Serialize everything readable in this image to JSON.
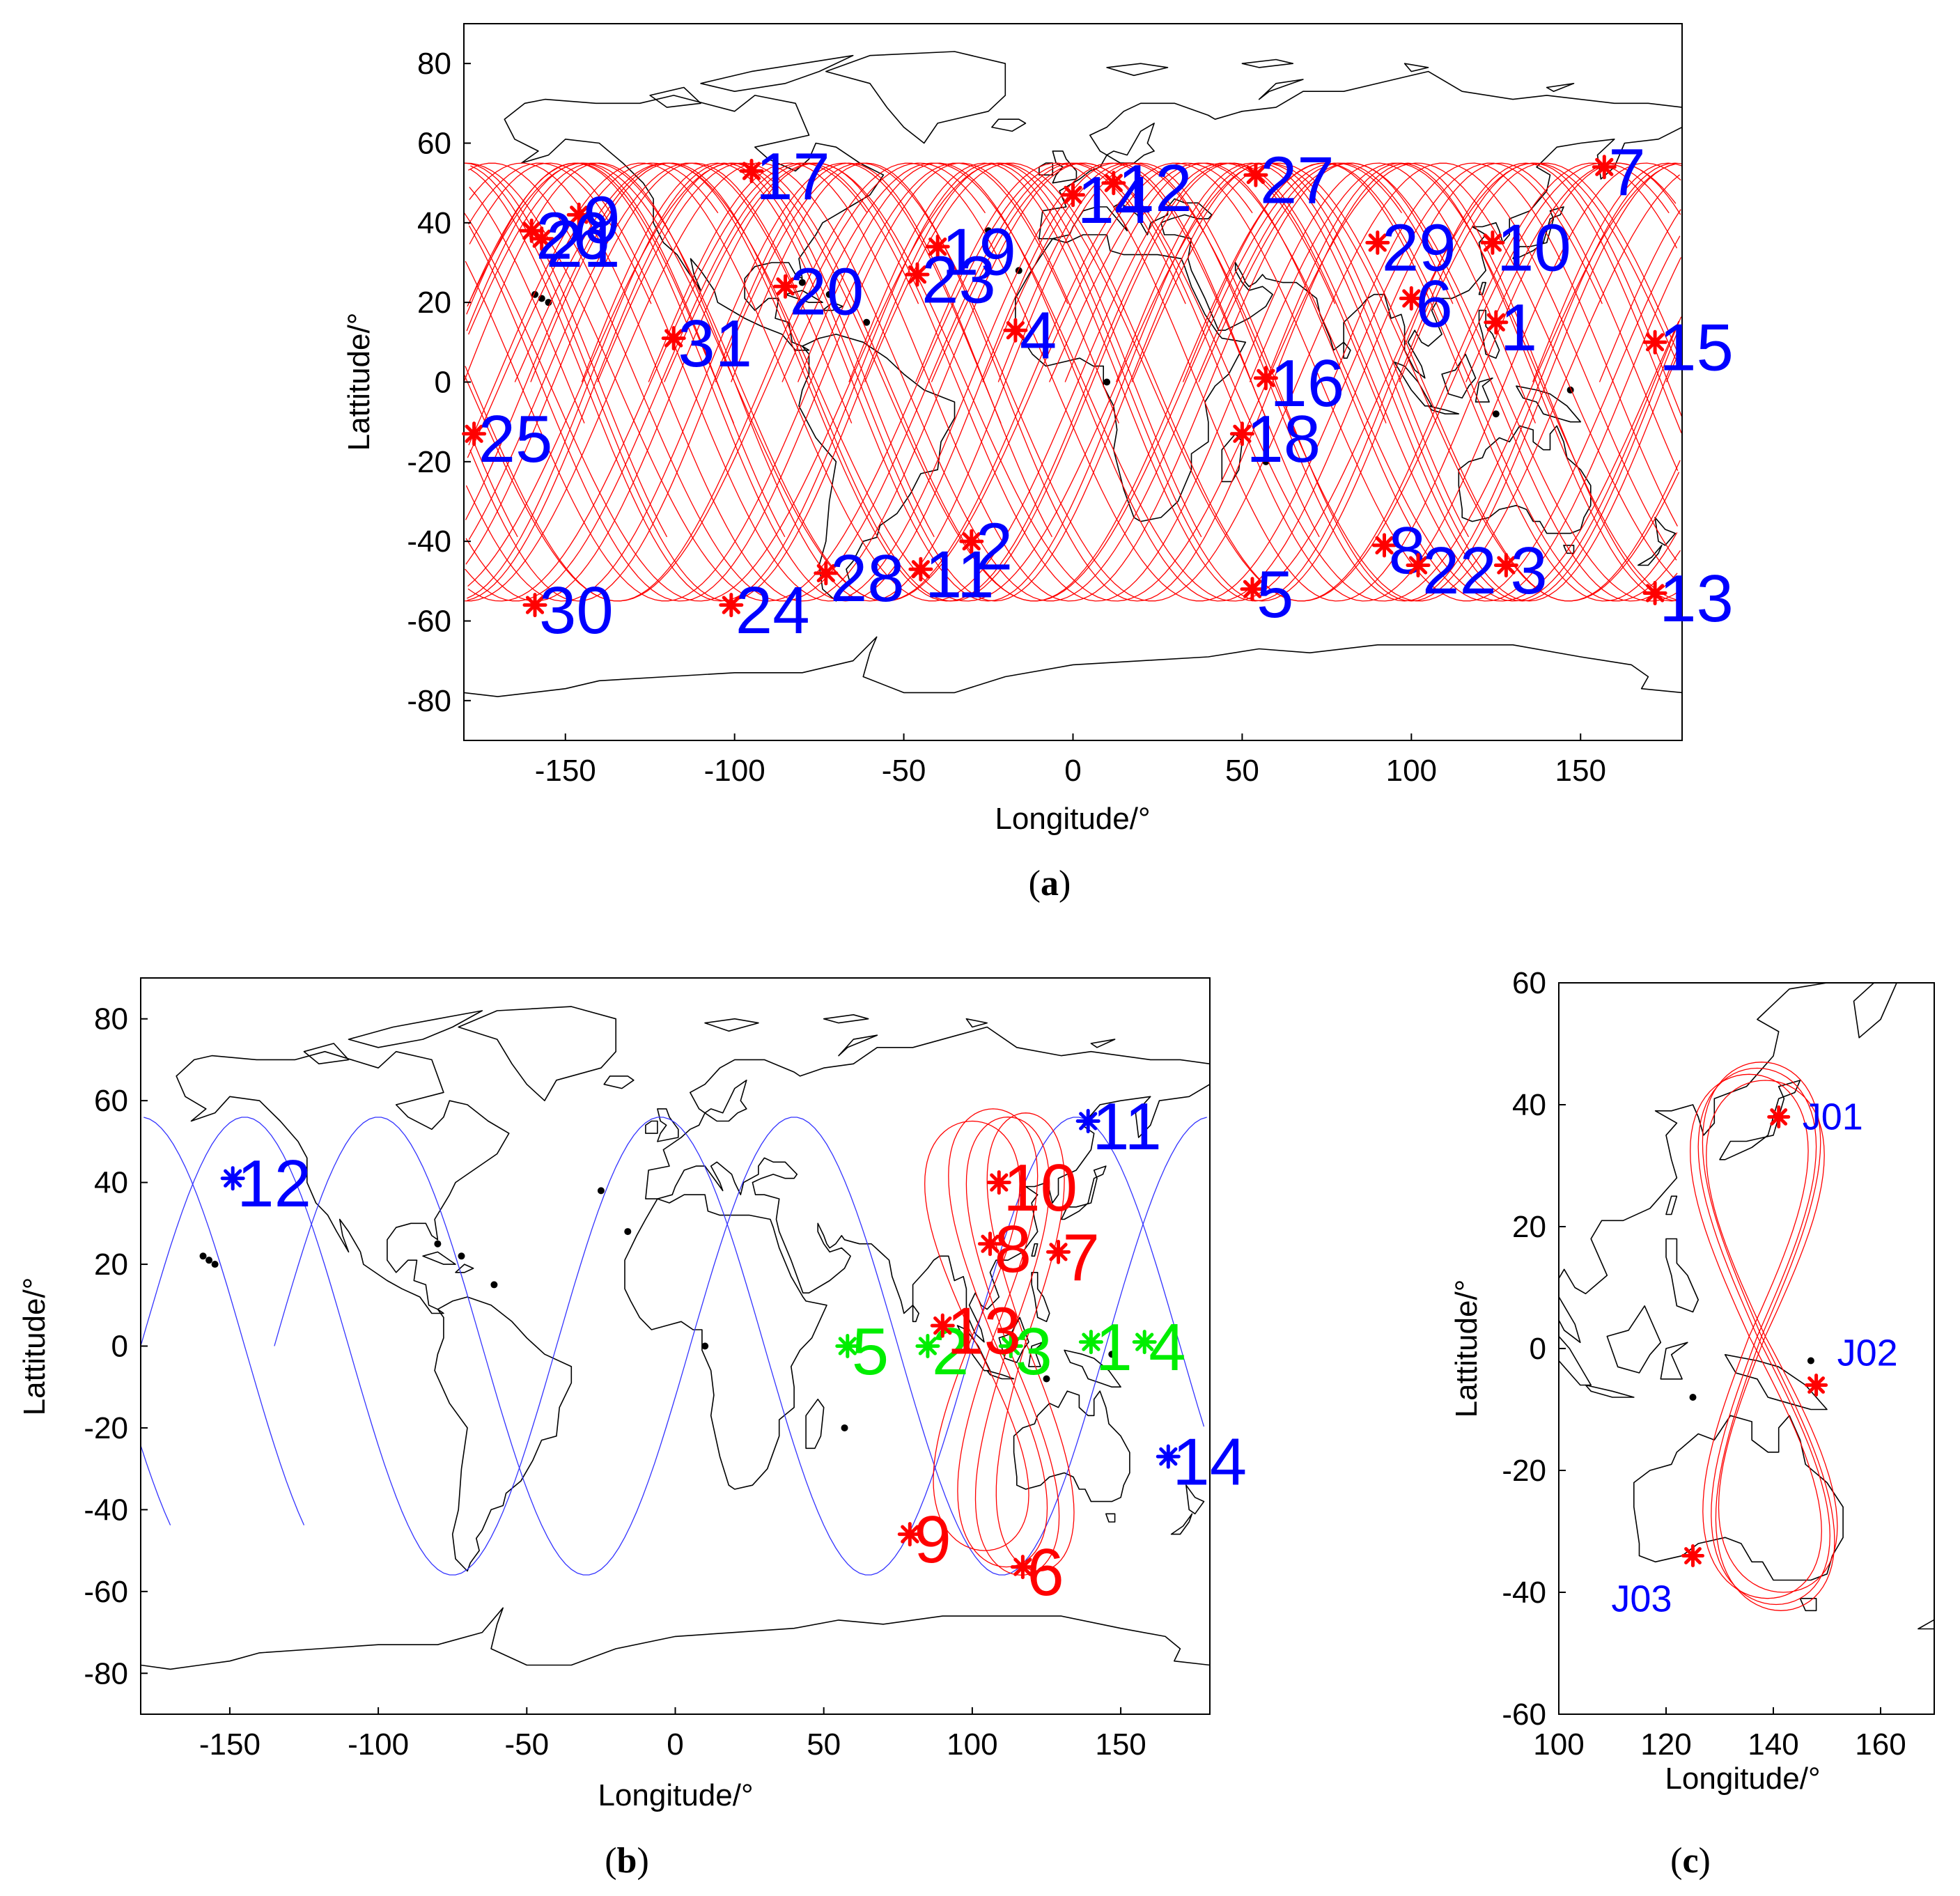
{
  "colors": {
    "red": "#ff0000",
    "blue": "#0000ff",
    "green": "#00ee00",
    "track_red": "#ff0000",
    "track_blue": "#3333ff",
    "coast": "#000000"
  },
  "chart_data": [
    {
      "panel": "a",
      "caption_letter": "a",
      "type": "scatter",
      "xlabel": "Longitude/°",
      "ylabel": "Lattitude/°",
      "xlim": [
        -180,
        180
      ],
      "ylim": [
        -90,
        90
      ],
      "xticks": [
        -150,
        -100,
        -50,
        0,
        50,
        100,
        150
      ],
      "yticks": [
        -80,
        -60,
        -40,
        -20,
        0,
        20,
        40,
        60,
        80
      ],
      "ground_tracks": {
        "pattern": "sinusoidal",
        "amplitude_deg": 55,
        "count": 31,
        "color": "red"
      },
      "points": [
        {
          "label": "1",
          "lon": 125,
          "lat": 15,
          "marker_color": "red",
          "label_color": "blue"
        },
        {
          "label": "2",
          "lon": -30,
          "lat": -40,
          "marker_color": "red",
          "label_color": "blue"
        },
        {
          "label": "3",
          "lon": 128,
          "lat": -46,
          "marker_color": "red",
          "label_color": "blue"
        },
        {
          "label": "4",
          "lon": -17,
          "lat": 13,
          "marker_color": "red",
          "label_color": "blue"
        },
        {
          "label": "5",
          "lon": 53,
          "lat": -52,
          "marker_color": "red",
          "label_color": "blue"
        },
        {
          "label": "6",
          "lon": 100,
          "lat": 21,
          "marker_color": "red",
          "label_color": "blue"
        },
        {
          "label": "7",
          "lon": 157,
          "lat": 54,
          "marker_color": "red",
          "label_color": "blue"
        },
        {
          "label": "8",
          "lon": 92,
          "lat": -41,
          "marker_color": "red",
          "label_color": "blue"
        },
        {
          "label": "9",
          "lon": -146,
          "lat": 42,
          "marker_color": "red",
          "label_color": "blue"
        },
        {
          "label": "10",
          "lon": 124,
          "lat": 35,
          "marker_color": "red",
          "label_color": "blue"
        },
        {
          "label": "11",
          "lon": -45,
          "lat": -47,
          "marker_color": "red",
          "label_color": "blue"
        },
        {
          "label": "12",
          "lon": 12,
          "lat": 50,
          "marker_color": "red",
          "label_color": "blue"
        },
        {
          "label": "13",
          "lon": 172,
          "lat": -53,
          "marker_color": "red",
          "label_color": "blue"
        },
        {
          "label": "14",
          "lon": 0,
          "lat": 47,
          "marker_color": "red",
          "label_color": "blue"
        },
        {
          "label": "15",
          "lon": 172,
          "lat": 10,
          "marker_color": "red",
          "label_color": "blue"
        },
        {
          "label": "16",
          "lon": 57,
          "lat": 1,
          "marker_color": "red",
          "label_color": "blue"
        },
        {
          "label": "17",
          "lon": -95,
          "lat": 53,
          "marker_color": "red",
          "label_color": "blue"
        },
        {
          "label": "18",
          "lon": 50,
          "lat": -13,
          "marker_color": "red",
          "label_color": "blue"
        },
        {
          "label": "19",
          "lon": -40,
          "lat": 34,
          "marker_color": "red",
          "label_color": "blue"
        },
        {
          "label": "20",
          "lon": -85,
          "lat": 24,
          "marker_color": "red",
          "label_color": "blue"
        },
        {
          "label": "21",
          "lon": -157,
          "lat": 36,
          "marker_color": "red",
          "label_color": "blue"
        },
        {
          "label": "22",
          "lon": 102,
          "lat": -46,
          "marker_color": "red",
          "label_color": "blue"
        },
        {
          "label": "23",
          "lon": -46,
          "lat": 27,
          "marker_color": "red",
          "label_color": "blue"
        },
        {
          "label": "24",
          "lon": -101,
          "lat": -56,
          "marker_color": "red",
          "label_color": "blue"
        },
        {
          "label": "25",
          "lon": -177,
          "lat": -13,
          "marker_color": "red",
          "label_color": "blue"
        },
        {
          "label": "26",
          "lon": -160,
          "lat": 38,
          "marker_color": "red",
          "label_color": "blue"
        },
        {
          "label": "27",
          "lon": 54,
          "lat": 52,
          "marker_color": "red",
          "label_color": "blue"
        },
        {
          "label": "28",
          "lon": -73,
          "lat": -48,
          "marker_color": "red",
          "label_color": "blue"
        },
        {
          "label": "29",
          "lon": 90,
          "lat": 35,
          "marker_color": "red",
          "label_color": "blue"
        },
        {
          "label": "30",
          "lon": -159,
          "lat": -56,
          "marker_color": "red",
          "label_color": "blue"
        },
        {
          "label": "31",
          "lon": -118,
          "lat": 11,
          "marker_color": "red",
          "label_color": "blue"
        }
      ]
    },
    {
      "panel": "b",
      "caption_letter": "b",
      "type": "scatter",
      "xlabel": "Longitude/°",
      "ylabel": "Lattitude/°",
      "xlim": [
        -180,
        180
      ],
      "ylim": [
        -90,
        90
      ],
      "xticks": [
        -150,
        -100,
        -50,
        0,
        50,
        100,
        150
      ],
      "yticks": [
        -80,
        -60,
        -40,
        -20,
        0,
        20,
        40,
        60,
        80
      ],
      "ground_tracks": {
        "blue_pattern": "sinusoidal",
        "blue_amplitude_deg": 56,
        "red_pattern": "figure-eight"
      },
      "points": [
        {
          "label": "1",
          "lon": 140,
          "lat": 1,
          "marker_color": "green",
          "label_color": "green"
        },
        {
          "label": "2",
          "lon": 85,
          "lat": 0,
          "marker_color": "green",
          "label_color": "green"
        },
        {
          "label": "3",
          "lon": 113,
          "lat": 0,
          "marker_color": "green",
          "label_color": "green"
        },
        {
          "label": "4",
          "lon": 158,
          "lat": 1,
          "marker_color": "green",
          "label_color": "green"
        },
        {
          "label": "5",
          "lon": 58,
          "lat": 0,
          "marker_color": "green",
          "label_color": "green"
        },
        {
          "label": "6",
          "lon": 117,
          "lat": -54,
          "marker_color": "red",
          "label_color": "red"
        },
        {
          "label": "7",
          "lon": 129,
          "lat": 23,
          "marker_color": "red",
          "label_color": "red"
        },
        {
          "label": "8",
          "lon": 106,
          "lat": 25,
          "marker_color": "red",
          "label_color": "red"
        },
        {
          "label": "9",
          "lon": 79,
          "lat": -46,
          "marker_color": "red",
          "label_color": "red"
        },
        {
          "label": "10",
          "lon": 109,
          "lat": 40,
          "marker_color": "red",
          "label_color": "red"
        },
        {
          "label": "11",
          "lon": 139,
          "lat": 55,
          "marker_color": "blue",
          "label_color": "blue"
        },
        {
          "label": "12",
          "lon": -149,
          "lat": 41,
          "marker_color": "blue",
          "label_color": "blue"
        },
        {
          "label": "13",
          "lon": 90,
          "lat": 5,
          "marker_color": "red",
          "label_color": "red"
        },
        {
          "label": "14",
          "lon": 166,
          "lat": -27,
          "marker_color": "blue",
          "label_color": "blue"
        }
      ]
    },
    {
      "panel": "c",
      "caption_letter": "c",
      "type": "scatter",
      "xlabel": "Longitude/°",
      "ylabel": "Lattitude/°",
      "xlim": [
        100,
        170
      ],
      "ylim": [
        -60,
        60
      ],
      "xticks": [
        100,
        120,
        140,
        160
      ],
      "yticks": [
        -60,
        -40,
        -20,
        0,
        20,
        40,
        60
      ],
      "ground_tracks": {
        "red_pattern": "figure-eight",
        "center_lon": 137,
        "max_lat": 45,
        "min_lat": -41
      },
      "points": [
        {
          "label": "J01",
          "lon": 141,
          "lat": 38,
          "marker_color": "red",
          "label_color": "blue"
        },
        {
          "label": "J02",
          "lon": 148,
          "lat": -6,
          "marker_color": "red",
          "label_color": "blue"
        },
        {
          "label": "J03",
          "lon": 125,
          "lat": -34,
          "marker_color": "red",
          "label_color": "blue"
        }
      ]
    }
  ]
}
